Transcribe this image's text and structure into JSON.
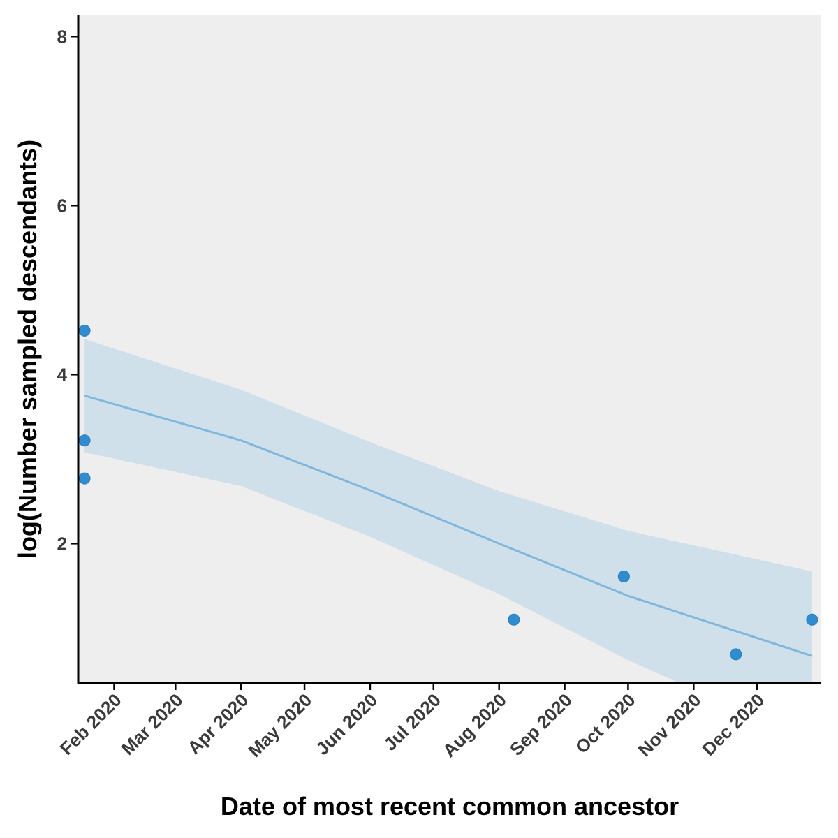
{
  "chart_data": {
    "type": "scatter",
    "title": "",
    "xlabel": "Date of most recent common ancestor",
    "ylabel": "log(Number sampled descendants)",
    "x_ticks": [
      {
        "date": "2020-02-01",
        "label": "Feb 2020"
      },
      {
        "date": "2020-03-01",
        "label": "Mar 2020"
      },
      {
        "date": "2020-04-01",
        "label": "Apr 2020"
      },
      {
        "date": "2020-05-01",
        "label": "May 2020"
      },
      {
        "date": "2020-06-01",
        "label": "Jun 2020"
      },
      {
        "date": "2020-07-01",
        "label": "Jul 2020"
      },
      {
        "date": "2020-08-01",
        "label": "Aug 2020"
      },
      {
        "date": "2020-09-01",
        "label": "Sep 2020"
      },
      {
        "date": "2020-10-01",
        "label": "Oct 2020"
      },
      {
        "date": "2020-11-01",
        "label": "Nov 2020"
      },
      {
        "date": "2020-12-01",
        "label": "Dec 2020"
      }
    ],
    "y_ticks": [
      2,
      4,
      6,
      8
    ],
    "xlim": [
      "2020-01-15",
      "2020-12-31"
    ],
    "ylim": [
      0.35,
      8.25
    ],
    "grid": false,
    "points": [
      {
        "x": "2020-01-18",
        "y": 4.52
      },
      {
        "x": "2020-01-18",
        "y": 3.22
      },
      {
        "x": "2020-01-18",
        "y": 2.77
      },
      {
        "x": "2020-08-08",
        "y": 1.1
      },
      {
        "x": "2020-09-29",
        "y": 1.61
      },
      {
        "x": "2020-11-21",
        "y": 0.69
      },
      {
        "x": "2020-12-27",
        "y": 1.1
      }
    ],
    "trend": {
      "type": "linear fit with confidence band",
      "x": [
        "2020-01-18",
        "2020-04-01",
        "2020-06-01",
        "2020-08-01",
        "2020-10-01",
        "2020-12-27"
      ],
      "fit": [
        3.75,
        3.22,
        2.63,
        2.0,
        1.38,
        0.67
      ],
      "lower": [
        3.08,
        2.68,
        2.08,
        1.4,
        0.62,
        -0.35
      ],
      "upper": [
        4.42,
        3.82,
        3.2,
        2.62,
        2.15,
        1.67
      ]
    },
    "colors": {
      "panel_background": "#eeeeee",
      "points": "#2e8ccf",
      "fit_line": "#7fb8dc",
      "band": "#cfe0ea",
      "axis": "#000000"
    }
  }
}
